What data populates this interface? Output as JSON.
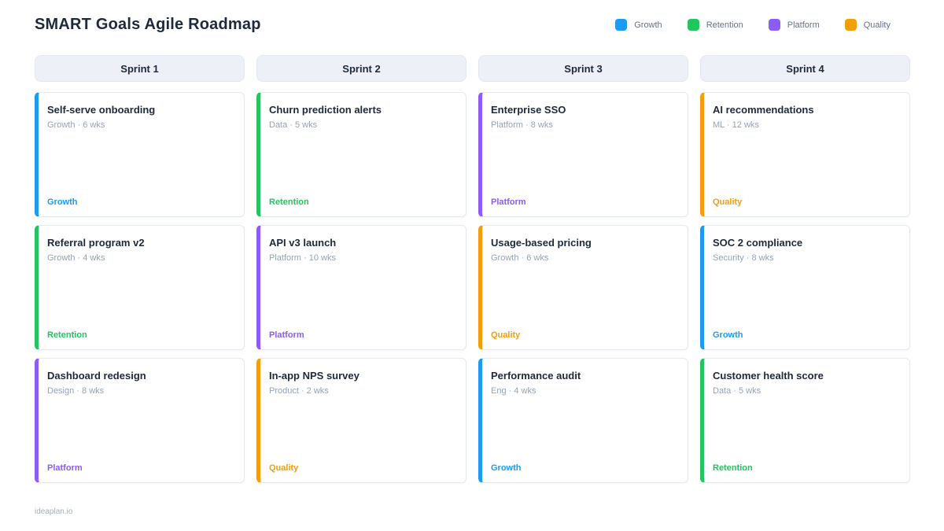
{
  "page": {
    "title": "SMART Goals Agile Roadmap",
    "footer": "ideaplan.io"
  },
  "colors": {
    "growth": "#1d9bf0",
    "retention": "#22c55e",
    "platform": "#8b5cf6",
    "quality": "#f59e0b"
  },
  "legend": [
    {
      "label": "Growth",
      "color_key": "growth"
    },
    {
      "label": "Retention",
      "color_key": "retention"
    },
    {
      "label": "Platform",
      "color_key": "platform"
    },
    {
      "label": "Quality",
      "color_key": "quality"
    }
  ],
  "board": {
    "columns": [
      {
        "header": "Sprint 1",
        "cards": [
          {
            "title": "Self-serve onboarding",
            "meta": "Growth · 6 wks",
            "tag": "Growth",
            "color_key": "growth"
          },
          {
            "title": "Referral program v2",
            "meta": "Growth · 4 wks",
            "tag": "Retention",
            "color_key": "retention"
          },
          {
            "title": "Dashboard redesign",
            "meta": "Design · 8 wks",
            "tag": "Platform",
            "color_key": "platform"
          }
        ]
      },
      {
        "header": "Sprint 2",
        "cards": [
          {
            "title": "Churn prediction alerts",
            "meta": "Data · 5 wks",
            "tag": "Retention",
            "color_key": "retention"
          },
          {
            "title": "API v3 launch",
            "meta": "Platform · 10 wks",
            "tag": "Platform",
            "color_key": "platform"
          },
          {
            "title": "In-app NPS survey",
            "meta": "Product · 2 wks",
            "tag": "Quality",
            "color_key": "quality"
          }
        ]
      },
      {
        "header": "Sprint 3",
        "cards": [
          {
            "title": "Enterprise SSO",
            "meta": "Platform · 8 wks",
            "tag": "Platform",
            "color_key": "platform"
          },
          {
            "title": "Usage-based pricing",
            "meta": "Growth · 6 wks",
            "tag": "Quality",
            "color_key": "quality"
          },
          {
            "title": "Performance audit",
            "meta": "Eng · 4 wks",
            "tag": "Growth",
            "color_key": "growth"
          }
        ]
      },
      {
        "header": "Sprint 4",
        "cards": [
          {
            "title": "AI recommendations",
            "meta": "ML · 12 wks",
            "tag": "Quality",
            "color_key": "quality"
          },
          {
            "title": "SOC 2 compliance",
            "meta": "Security · 8 wks",
            "tag": "Growth",
            "color_key": "growth"
          },
          {
            "title": "Customer health score",
            "meta": "Data · 5 wks",
            "tag": "Retention",
            "color_key": "retention"
          }
        ]
      }
    ]
  }
}
